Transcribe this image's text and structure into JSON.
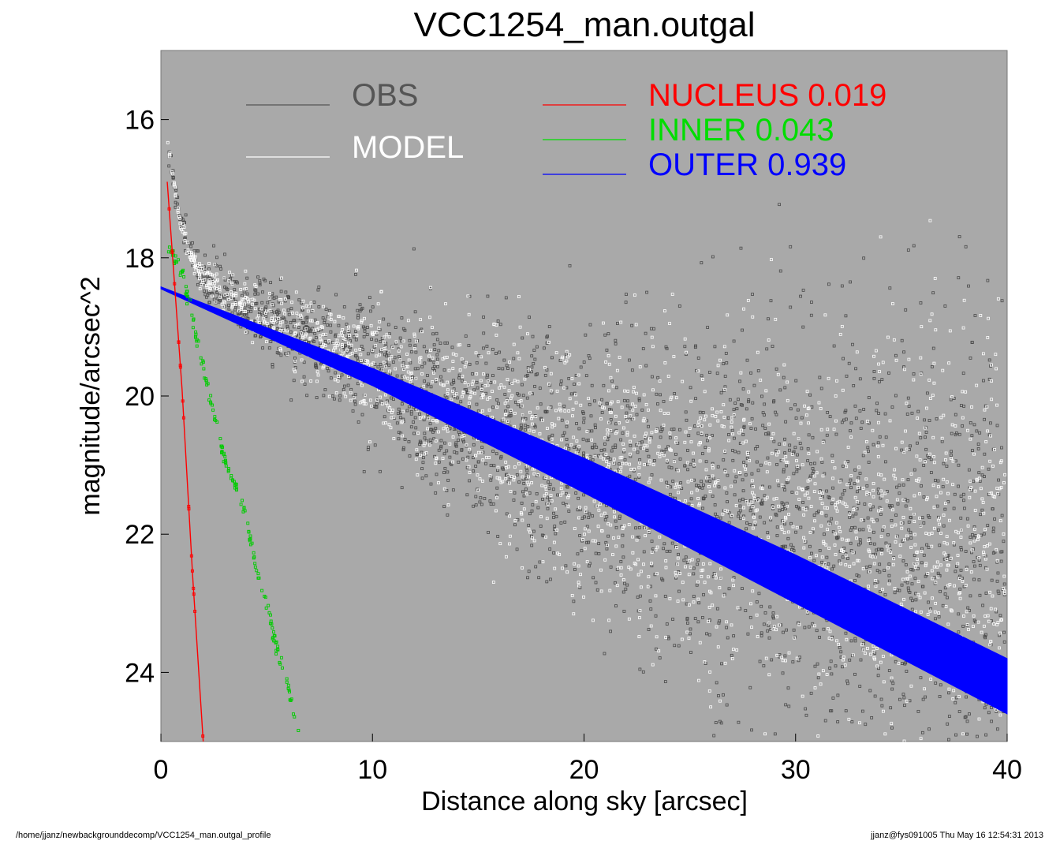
{
  "chart_data": {
    "type": "scatter",
    "title": "VCC1254_man.outgal",
    "xlabel": "Distance along sky [arcsec]",
    "ylabel": "magnitude/arcsec^2",
    "xlim": [
      0,
      40
    ],
    "ylim": [
      25.0,
      15.0
    ],
    "y_inverted": true,
    "grid": false,
    "background_color": "#a9a9a9",
    "xticks": [
      0,
      10,
      20,
      30,
      40
    ],
    "yticks": [
      16,
      18,
      20,
      22,
      24
    ],
    "xtick_labels": [
      "0",
      "10",
      "20",
      "30",
      "40"
    ],
    "ytick_labels": [
      "16",
      "18",
      "20",
      "22",
      "24"
    ],
    "legend": [
      {
        "label": "OBS",
        "color": "#555555"
      },
      {
        "label": "MODEL",
        "color": "#ffffff"
      },
      {
        "label": "NUCLEUS  0.019",
        "color": "#ff0000"
      },
      {
        "label": "INNER  0.043",
        "color": "#00dd00"
      },
      {
        "label": "OUTER  0.939",
        "color": "#0000ff"
      }
    ],
    "series": [
      {
        "name": "OBS",
        "kind": "points",
        "x": [
          0.3,
          0.8,
          1.2,
          2.0,
          3.0,
          4.0,
          5.0,
          7.0,
          10.0,
          13.0,
          16.0,
          20.0,
          24.0,
          28.0,
          32.0,
          36.0,
          40.0
        ],
        "y": [
          16.3,
          17.3,
          17.8,
          18.3,
          18.5,
          18.7,
          18.85,
          19.15,
          19.6,
          20.05,
          20.45,
          21.0,
          21.4,
          21.7,
          22.0,
          22.25,
          22.5
        ]
      },
      {
        "name": "MODEL",
        "kind": "points",
        "x": [
          0.3,
          0.8,
          1.2,
          2.0,
          3.0,
          4.0,
          5.0,
          7.0,
          10.0,
          13.0,
          16.0,
          20.0,
          24.0,
          28.0,
          32.0,
          36.0,
          40.0
        ],
        "y": [
          16.3,
          17.3,
          17.8,
          18.3,
          18.5,
          18.7,
          18.85,
          19.15,
          19.6,
          20.05,
          20.45,
          21.0,
          21.4,
          21.7,
          22.0,
          22.25,
          22.5
        ]
      },
      {
        "name": "NUCLEUS",
        "kind": "line",
        "x": [
          0.3,
          1.0,
          1.5,
          2.0
        ],
        "y": [
          16.9,
          19.9,
          22.6,
          25.0
        ]
      },
      {
        "name": "INNER",
        "kind": "points",
        "x": [
          0.3,
          1.0,
          2.0,
          3.0,
          4.0,
          4.5,
          5.0,
          5.5,
          6.0,
          6.5
        ],
        "y": [
          17.8,
          18.2,
          19.6,
          20.9,
          21.7,
          22.5,
          23.0,
          23.7,
          24.2,
          24.9
        ]
      },
      {
        "name": "OUTER",
        "kind": "band",
        "x": [
          0.0,
          10.0,
          20.0,
          30.0,
          40.0
        ],
        "y_upper": [
          18.42,
          19.6,
          20.9,
          22.3,
          23.8
        ],
        "y_lower": [
          18.45,
          19.85,
          21.4,
          23.0,
          24.6
        ]
      }
    ]
  },
  "footer": {
    "path": "/home/jjanz/newbackgrounddecomp/VCC1254_man.outgal_profile",
    "stamp": "jjanz@fys091005  Thu May 16 12:54:31 2013"
  }
}
